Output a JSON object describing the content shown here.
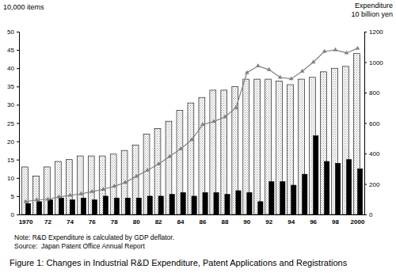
{
  "chart_data": {
    "type": "bar",
    "title": "Figure 1: Changes in Industrial R&D Expenditure, Patent Applications and Registrations",
    "y_label": "10,000 items",
    "y2_label": [
      "Expenditure",
      "10 billion yen"
    ],
    "note": "Note: R&D Expenditure is calculated by GDP deflator.",
    "source": "Source:  Japan Patent Office Annual Report",
    "categories": [
      "1970",
      null,
      "72",
      null,
      "74",
      null,
      "76",
      null,
      "78",
      null,
      "80",
      null,
      "82",
      null,
      "84",
      null,
      "86",
      null,
      "88",
      null,
      "90",
      null,
      "92",
      null,
      "94",
      null,
      "96",
      null,
      "98",
      null,
      "2000"
    ],
    "ylim": [
      0,
      50
    ],
    "yticks": [
      0,
      5,
      10,
      15,
      20,
      25,
      30,
      35,
      40,
      45,
      50
    ],
    "y2lim": [
      0,
      1200
    ],
    "y2ticks": [
      0,
      200,
      400,
      600,
      800,
      1000,
      1200
    ],
    "series": [
      {
        "type": "bar",
        "color": "#9a9a9a",
        "values": [
          13,
          10.5,
          13,
          14.5,
          15,
          16,
          16,
          16,
          16.5,
          17.5,
          19,
          22,
          23.5,
          25.5,
          28.5,
          30.5,
          32,
          34,
          34,
          35,
          37,
          37,
          37,
          36.5,
          35.5,
          37,
          37.5,
          39,
          40,
          40.5,
          44
        ]
      },
      {
        "type": "bar",
        "color": "#000000",
        "values": [
          3,
          3.5,
          4,
          4.5,
          4,
          4.5,
          4,
          5,
          4.5,
          4.5,
          4.5,
          5,
          5,
          5.5,
          6,
          5,
          6,
          6,
          5.5,
          6.5,
          6,
          3.5,
          9,
          9,
          8,
          11,
          21.5,
          14.5,
          14,
          15,
          12.5
        ]
      },
      {
        "type": "line",
        "axis": "y2",
        "color": "#808080",
        "marker": "triangle",
        "values": [
          84,
          96,
          100,
          115,
          125,
          135,
          150,
          165,
          185,
          210,
          250,
          290,
          330,
          380,
          430,
          490,
          590,
          610,
          640,
          700,
          930,
          975,
          950,
          900,
          890,
          940,
          1000,
          1070,
          1080,
          1060,
          1090
        ]
      }
    ]
  }
}
